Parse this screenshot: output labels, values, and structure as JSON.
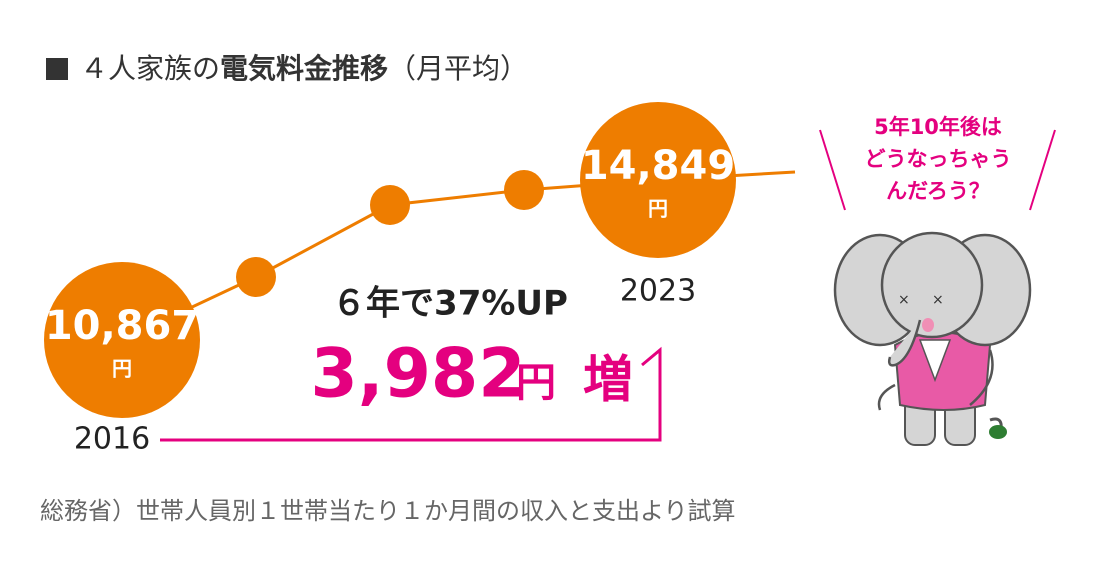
{
  "chart_data": {
    "type": "line",
    "title_prefix": "４人家族の",
    "title_bold": "電気料金推移",
    "title_suffix": "（月平均）",
    "categories": [
      "2016",
      null,
      null,
      null,
      "2023"
    ],
    "values": [
      10867,
      12435,
      14228,
      14601,
      14849
    ],
    "value_labels": [
      "10,867",
      null,
      null,
      null,
      "14,849"
    ],
    "unit": "円",
    "color": "#ee7d00",
    "annotation_top": "６年で37%UP",
    "annotation_amount": "3,982",
    "annotation_unit": "円",
    "annotation_suffix": "増",
    "bubble_lines": [
      "5年10年後は",
      "どうなっちゃう",
      "んだろう？"
    ],
    "source": "総務省）世帯人員別１世帯当たり１か月間の収入と支出より試算"
  }
}
